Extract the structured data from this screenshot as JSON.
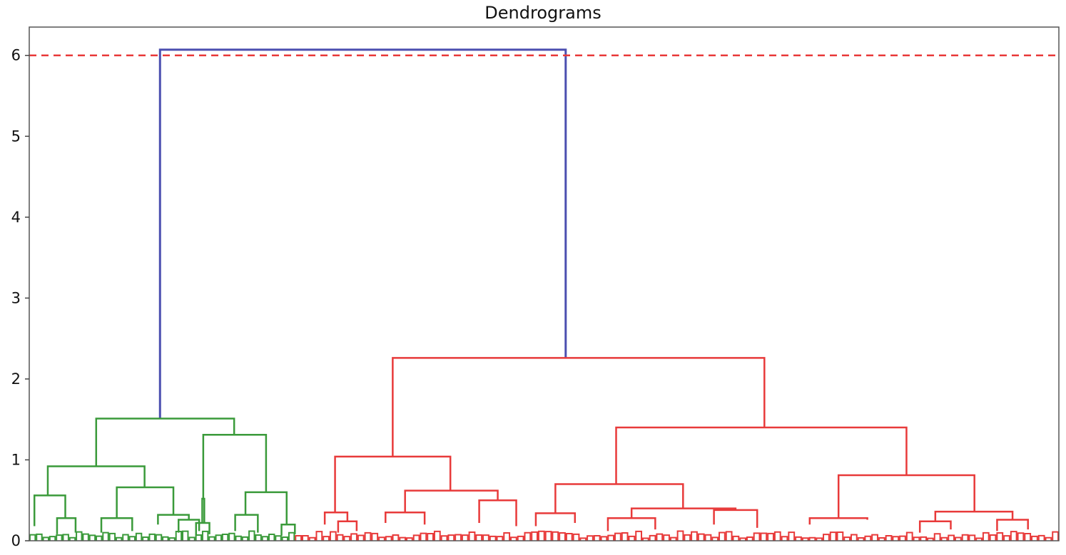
{
  "chart_data": {
    "type": "dendrogram",
    "title": "Dendrograms",
    "xlabel": "",
    "ylabel": "",
    "ylim": [
      0,
      6.35
    ],
    "y_ticks": [
      0,
      1,
      2,
      3,
      4,
      5,
      6
    ],
    "grid": false,
    "threshold": {
      "y": 6.0,
      "color": "#e83a3a",
      "style": "dashed"
    },
    "colors": {
      "root": "#4b4fb0",
      "cluster_1": "#3a9a3a",
      "cluster_2": "#e83a3a"
    },
    "links": [
      {
        "c": "root",
        "x1": 0.127,
        "x2": 0.521,
        "h": 6.07,
        "y1": 1.51,
        "y2": 2.26
      },
      {
        "c": "cluster_1",
        "x1": 0.065,
        "x2": 0.199,
        "h": 1.51,
        "y1": 0.92,
        "y2": 1.31
      },
      {
        "c": "cluster_1",
        "x1": 0.018,
        "x2": 0.112,
        "h": 0.92,
        "y1": 0.56,
        "y2": 0.66
      },
      {
        "c": "cluster_1",
        "x1": 0.005,
        "x2": 0.035,
        "h": 0.56,
        "y1": 0.18,
        "y2": 0.28
      },
      {
        "c": "cluster_1",
        "x1": 0.027,
        "x2": 0.045,
        "h": 0.28,
        "y1": 0.08,
        "y2": 0.1
      },
      {
        "c": "cluster_1",
        "x1": 0.085,
        "x2": 0.14,
        "h": 0.66,
        "y1": 0.28,
        "y2": 0.32
      },
      {
        "c": "cluster_1",
        "x1": 0.07,
        "x2": 0.1,
        "h": 0.28,
        "y1": 0.1,
        "y2": 0.12
      },
      {
        "c": "cluster_1",
        "x1": 0.125,
        "x2": 0.155,
        "h": 0.32,
        "y1": 0.2,
        "y2": 0.26
      },
      {
        "c": "cluster_1",
        "x1": 0.145,
        "x2": 0.165,
        "h": 0.26,
        "y1": 0.1,
        "y2": 0.12
      },
      {
        "c": "cluster_1",
        "x1": 0.169,
        "x2": 0.23,
        "h": 1.31,
        "y1": 0.52,
        "y2": 0.6
      },
      {
        "c": "cluster_1",
        "x1": 0.168,
        "x2": 0.17,
        "h": 0.52,
        "y1": 0.22,
        "y2": 0.22
      },
      {
        "c": "cluster_1",
        "x1": 0.162,
        "x2": 0.175,
        "h": 0.22,
        "y1": 0.06,
        "y2": 0.08
      },
      {
        "c": "cluster_1",
        "x1": 0.21,
        "x2": 0.25,
        "h": 0.6,
        "y1": 0.32,
        "y2": 0.2
      },
      {
        "c": "cluster_1",
        "x1": 0.2,
        "x2": 0.222,
        "h": 0.32,
        "y1": 0.12,
        "y2": 0.1
      },
      {
        "c": "cluster_1",
        "x1": 0.245,
        "x2": 0.258,
        "h": 0.2,
        "y1": 0.06,
        "y2": 0.08
      },
      {
        "c": "cluster_2",
        "x1": 0.353,
        "x2": 0.714,
        "h": 2.26,
        "y1": 1.04,
        "y2": 1.4
      },
      {
        "c": "cluster_2",
        "x1": 0.297,
        "x2": 0.409,
        "h": 1.04,
        "y1": 0.35,
        "y2": 0.62
      },
      {
        "c": "cluster_2",
        "x1": 0.287,
        "x2": 0.309,
        "h": 0.35,
        "y1": 0.2,
        "y2": 0.24
      },
      {
        "c": "cluster_2",
        "x1": 0.3,
        "x2": 0.318,
        "h": 0.24,
        "y1": 0.1,
        "y2": 0.12
      },
      {
        "c": "cluster_2",
        "x1": 0.365,
        "x2": 0.455,
        "h": 0.62,
        "y1": 0.35,
        "y2": 0.5
      },
      {
        "c": "cluster_2",
        "x1": 0.346,
        "x2": 0.384,
        "h": 0.35,
        "y1": 0.22,
        "y2": 0.2
      },
      {
        "c": "cluster_2",
        "x1": 0.437,
        "x2": 0.473,
        "h": 0.5,
        "y1": 0.22,
        "y2": 0.18
      },
      {
        "c": "cluster_2",
        "x1": 0.57,
        "x2": 0.852,
        "h": 1.4,
        "y1": 0.7,
        "y2": 0.81
      },
      {
        "c": "cluster_2",
        "x1": 0.511,
        "x2": 0.635,
        "h": 0.7,
        "y1": 0.34,
        "y2": 0.4
      },
      {
        "c": "cluster_2",
        "x1": 0.492,
        "x2": 0.53,
        "h": 0.34,
        "y1": 0.18,
        "y2": 0.22
      },
      {
        "c": "cluster_2",
        "x1": 0.585,
        "x2": 0.686,
        "h": 0.4,
        "y1": 0.28,
        "y2": 0.38
      },
      {
        "c": "cluster_2",
        "x1": 0.562,
        "x2": 0.608,
        "h": 0.28,
        "y1": 0.12,
        "y2": 0.14
      },
      {
        "c": "cluster_2",
        "x1": 0.665,
        "x2": 0.707,
        "h": 0.38,
        "y1": 0.2,
        "y2": 0.16
      },
      {
        "c": "cluster_2",
        "x1": 0.786,
        "x2": 0.918,
        "h": 0.81,
        "y1": 0.28,
        "y2": 0.36
      },
      {
        "c": "cluster_2",
        "x1": 0.758,
        "x2": 0.814,
        "h": 0.28,
        "y1": 0.2,
        "y2": 0.26
      },
      {
        "c": "cluster_2",
        "x1": 0.88,
        "x2": 0.955,
        "h": 0.36,
        "y1": 0.24,
        "y2": 0.26
      },
      {
        "c": "cluster_2",
        "x1": 0.865,
        "x2": 0.895,
        "h": 0.24,
        "y1": 0.1,
        "y2": 0.14
      },
      {
        "c": "cluster_2",
        "x1": 0.94,
        "x2": 0.97,
        "h": 0.26,
        "y1": 0.12,
        "y2": 0.14
      }
    ],
    "leaves": {
      "cluster_1": {
        "x_from": 0.0,
        "x_to": 0.258,
        "count": 40
      },
      "cluster_2": {
        "x_from": 0.258,
        "x_to": 1.0,
        "count": 110
      }
    }
  }
}
